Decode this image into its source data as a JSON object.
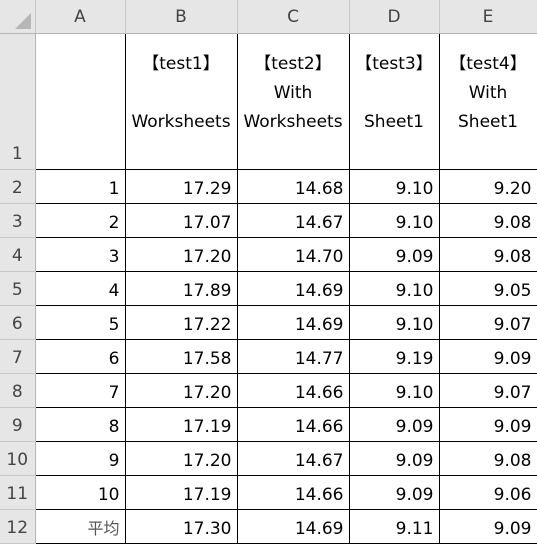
{
  "sheet": {
    "columns": [
      "A",
      "B",
      "C",
      "D",
      "E"
    ],
    "header_row": {
      "row_number": "1",
      "cells": [
        {
          "line1": "",
          "line2": "",
          "line3": ""
        },
        {
          "line1": "【test1】",
          "line2": "",
          "line3": "Worksheets"
        },
        {
          "line1": "【test2】",
          "line2": "With",
          "line3": "Worksheets"
        },
        {
          "line1": "【test3】",
          "line2": "",
          "line3": "Sheet1"
        },
        {
          "line1": "【test4】",
          "line2": "With",
          "line3": "Sheet1"
        }
      ]
    },
    "rows": [
      {
        "row_number": "2",
        "values": [
          "1",
          "17.29",
          "14.68",
          "9.10",
          "9.20"
        ]
      },
      {
        "row_number": "3",
        "values": [
          "2",
          "17.07",
          "14.67",
          "9.10",
          "9.08"
        ]
      },
      {
        "row_number": "4",
        "values": [
          "3",
          "17.20",
          "14.70",
          "9.09",
          "9.08"
        ]
      },
      {
        "row_number": "5",
        "values": [
          "4",
          "17.89",
          "14.69",
          "9.10",
          "9.05"
        ]
      },
      {
        "row_number": "6",
        "values": [
          "5",
          "17.22",
          "14.69",
          "9.10",
          "9.07"
        ]
      },
      {
        "row_number": "7",
        "values": [
          "6",
          "17.58",
          "14.77",
          "9.19",
          "9.09"
        ]
      },
      {
        "row_number": "8",
        "values": [
          "7",
          "17.20",
          "14.66",
          "9.10",
          "9.07"
        ]
      },
      {
        "row_number": "9",
        "values": [
          "8",
          "17.19",
          "14.66",
          "9.09",
          "9.09"
        ]
      },
      {
        "row_number": "10",
        "values": [
          "9",
          "17.20",
          "14.67",
          "9.09",
          "9.08"
        ]
      },
      {
        "row_number": "11",
        "values": [
          "10",
          "17.19",
          "14.66",
          "9.09",
          "9.06"
        ]
      },
      {
        "row_number": "12",
        "values": [
          "平均",
          "17.30",
          "14.69",
          "9.11",
          "9.09"
        ]
      }
    ]
  },
  "colors": {
    "header_background": "#e6e6e6",
    "grid_border": "#000000",
    "header_text": "#444444"
  }
}
